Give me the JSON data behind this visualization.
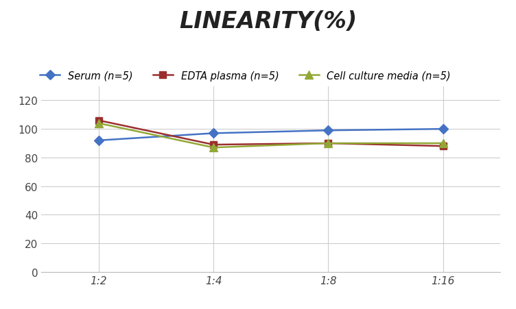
{
  "title": "LINEARITY(%)",
  "title_fontsize": 24,
  "title_fontstyle": "italic",
  "title_fontweight": "bold",
  "x_labels": [
    "1:2",
    "1:4",
    "1:8",
    "1:16"
  ],
  "x_positions": [
    0,
    1,
    2,
    3
  ],
  "series": [
    {
      "label": "Serum (n=5)",
      "values": [
        92,
        97,
        99,
        100
      ],
      "color": "#4472C4",
      "marker": "D",
      "markersize": 7,
      "linewidth": 1.8
    },
    {
      "label": "EDTA plasma (n=5)",
      "values": [
        106,
        89,
        90,
        88
      ],
      "color": "#9B2F2E",
      "marker": "s",
      "markersize": 7,
      "linewidth": 1.8
    },
    {
      "label": "Cell culture media (n=5)",
      "values": [
        104,
        87,
        90,
        90
      ],
      "color": "#92A836",
      "marker": "^",
      "markersize": 8,
      "linewidth": 1.8
    }
  ],
  "ylim": [
    0,
    130
  ],
  "yticks": [
    0,
    20,
    40,
    60,
    80,
    100,
    120
  ],
  "background_color": "#ffffff",
  "grid_color": "#cccccc",
  "legend_fontsize": 10.5,
  "tick_fontsize": 11
}
